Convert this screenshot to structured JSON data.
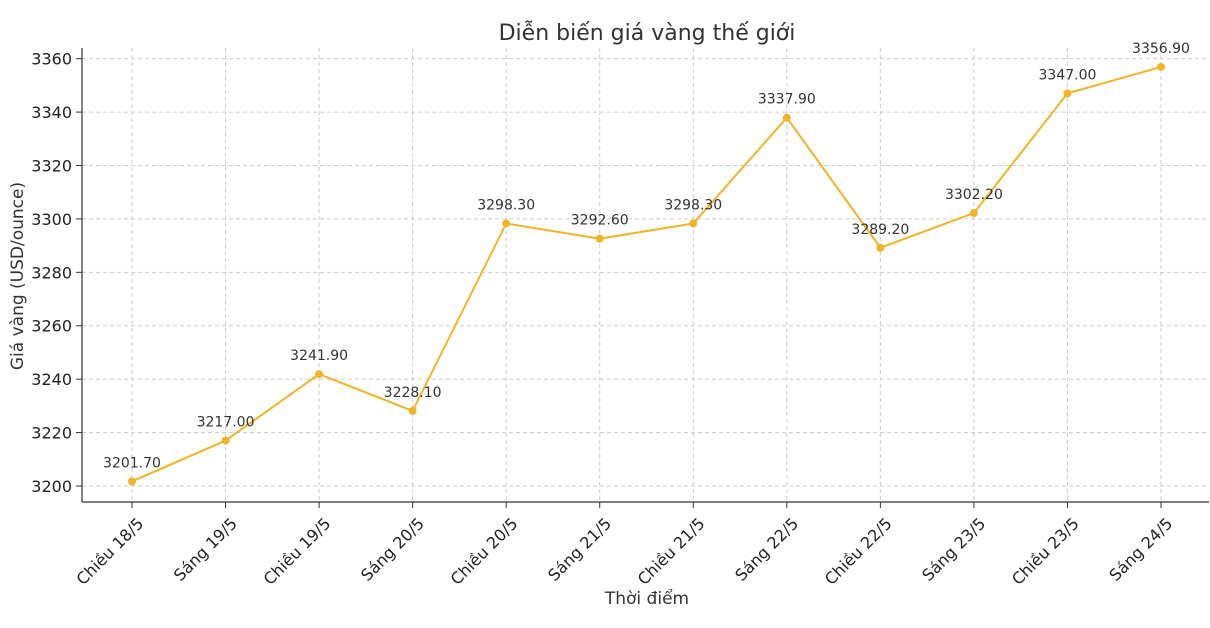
{
  "chart_data": {
    "type": "line",
    "title": "Diễn biến giá vàng thế giới",
    "xlabel": "Thời điểm",
    "ylabel": "Giá vàng (USD/ounce)",
    "categories": [
      "Chiều 18/5",
      "Sáng 19/5",
      "Chiều 19/5",
      "Sáng 20/5",
      "Chiều 20/5",
      "Sáng 21/5",
      "Chiều 21/5",
      "Sáng 22/5",
      "Chiều 22/5",
      "Sáng 23/5",
      "Chiều 23/5",
      "Sáng 24/5"
    ],
    "values": [
      3201.7,
      3217.0,
      3241.9,
      3228.1,
      3298.3,
      3292.6,
      3298.3,
      3337.9,
      3289.2,
      3302.2,
      3347.0,
      3356.9
    ],
    "value_labels": [
      "3201.70",
      "3217.00",
      "3241.90",
      "3228.10",
      "3298.30",
      "3292.60",
      "3298.30",
      "3337.90",
      "3289.20",
      "3302.20",
      "3347.00",
      "3356.90"
    ],
    "yticks": [
      3200,
      3220,
      3240,
      3260,
      3280,
      3300,
      3320,
      3340,
      3360
    ],
    "ylim": [
      3194,
      3364
    ],
    "grid": true,
    "color": "#f0b429"
  }
}
